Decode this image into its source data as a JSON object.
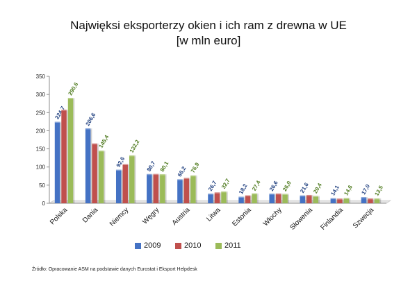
{
  "chart_data": {
    "type": "bar",
    "title_line1": "Najwięksi eksporterzy okien i ich ram z drewna w UE",
    "title_line2": "[w mln euro]",
    "categories": [
      "Polska",
      "Dania",
      "Niemcy",
      "Węgry",
      "Austria",
      "Litwa",
      "Estonia",
      "Włochy",
      "Słowenia",
      "Finlandia",
      "Szwecja"
    ],
    "series": [
      {
        "name": "2009",
        "color": "#4472c4",
        "label_color": "#1f3f7f",
        "values": [
          224.7,
          206.6,
          92.6,
          80.7,
          66.2,
          26.7,
          18.2,
          26.6,
          21.6,
          14.1,
          17.0
        ],
        "labels": [
          "224,7",
          "206,6",
          "92,6",
          "80,7",
          "66,2",
          "26,7",
          "18,2",
          "26,6",
          "21,6",
          "14,1",
          "17,0"
        ]
      },
      {
        "name": "2010",
        "color": "#c0504d",
        "label_color": "#8b1f1d",
        "values": [
          258,
          165,
          108,
          81,
          70,
          30,
          22,
          27,
          23,
          13,
          13.5
        ],
        "labels": []
      },
      {
        "name": "2011",
        "color": "#9bbb59",
        "label_color": "#4e7a1e",
        "values": [
          290.6,
          145.4,
          132.2,
          80.1,
          76.9,
          32.7,
          27.4,
          26.0,
          20.4,
          14.6,
          13.5
        ],
        "labels": [
          "290,6",
          "145,4",
          "132,2",
          "80,1",
          "76,9",
          "32,7",
          "27,4",
          "26,0",
          "20,4",
          "14,6",
          "13,5"
        ]
      }
    ],
    "yticks": [
      "0",
      "50",
      "100",
      "150",
      "200",
      "250",
      "300",
      "350"
    ],
    "ylim": [
      0,
      350
    ],
    "grid": false,
    "legend_position": "bottom"
  },
  "source": "Źródło: Opracowanie ASM na podstawie danych Eurostat i Eksport Helpdesk"
}
